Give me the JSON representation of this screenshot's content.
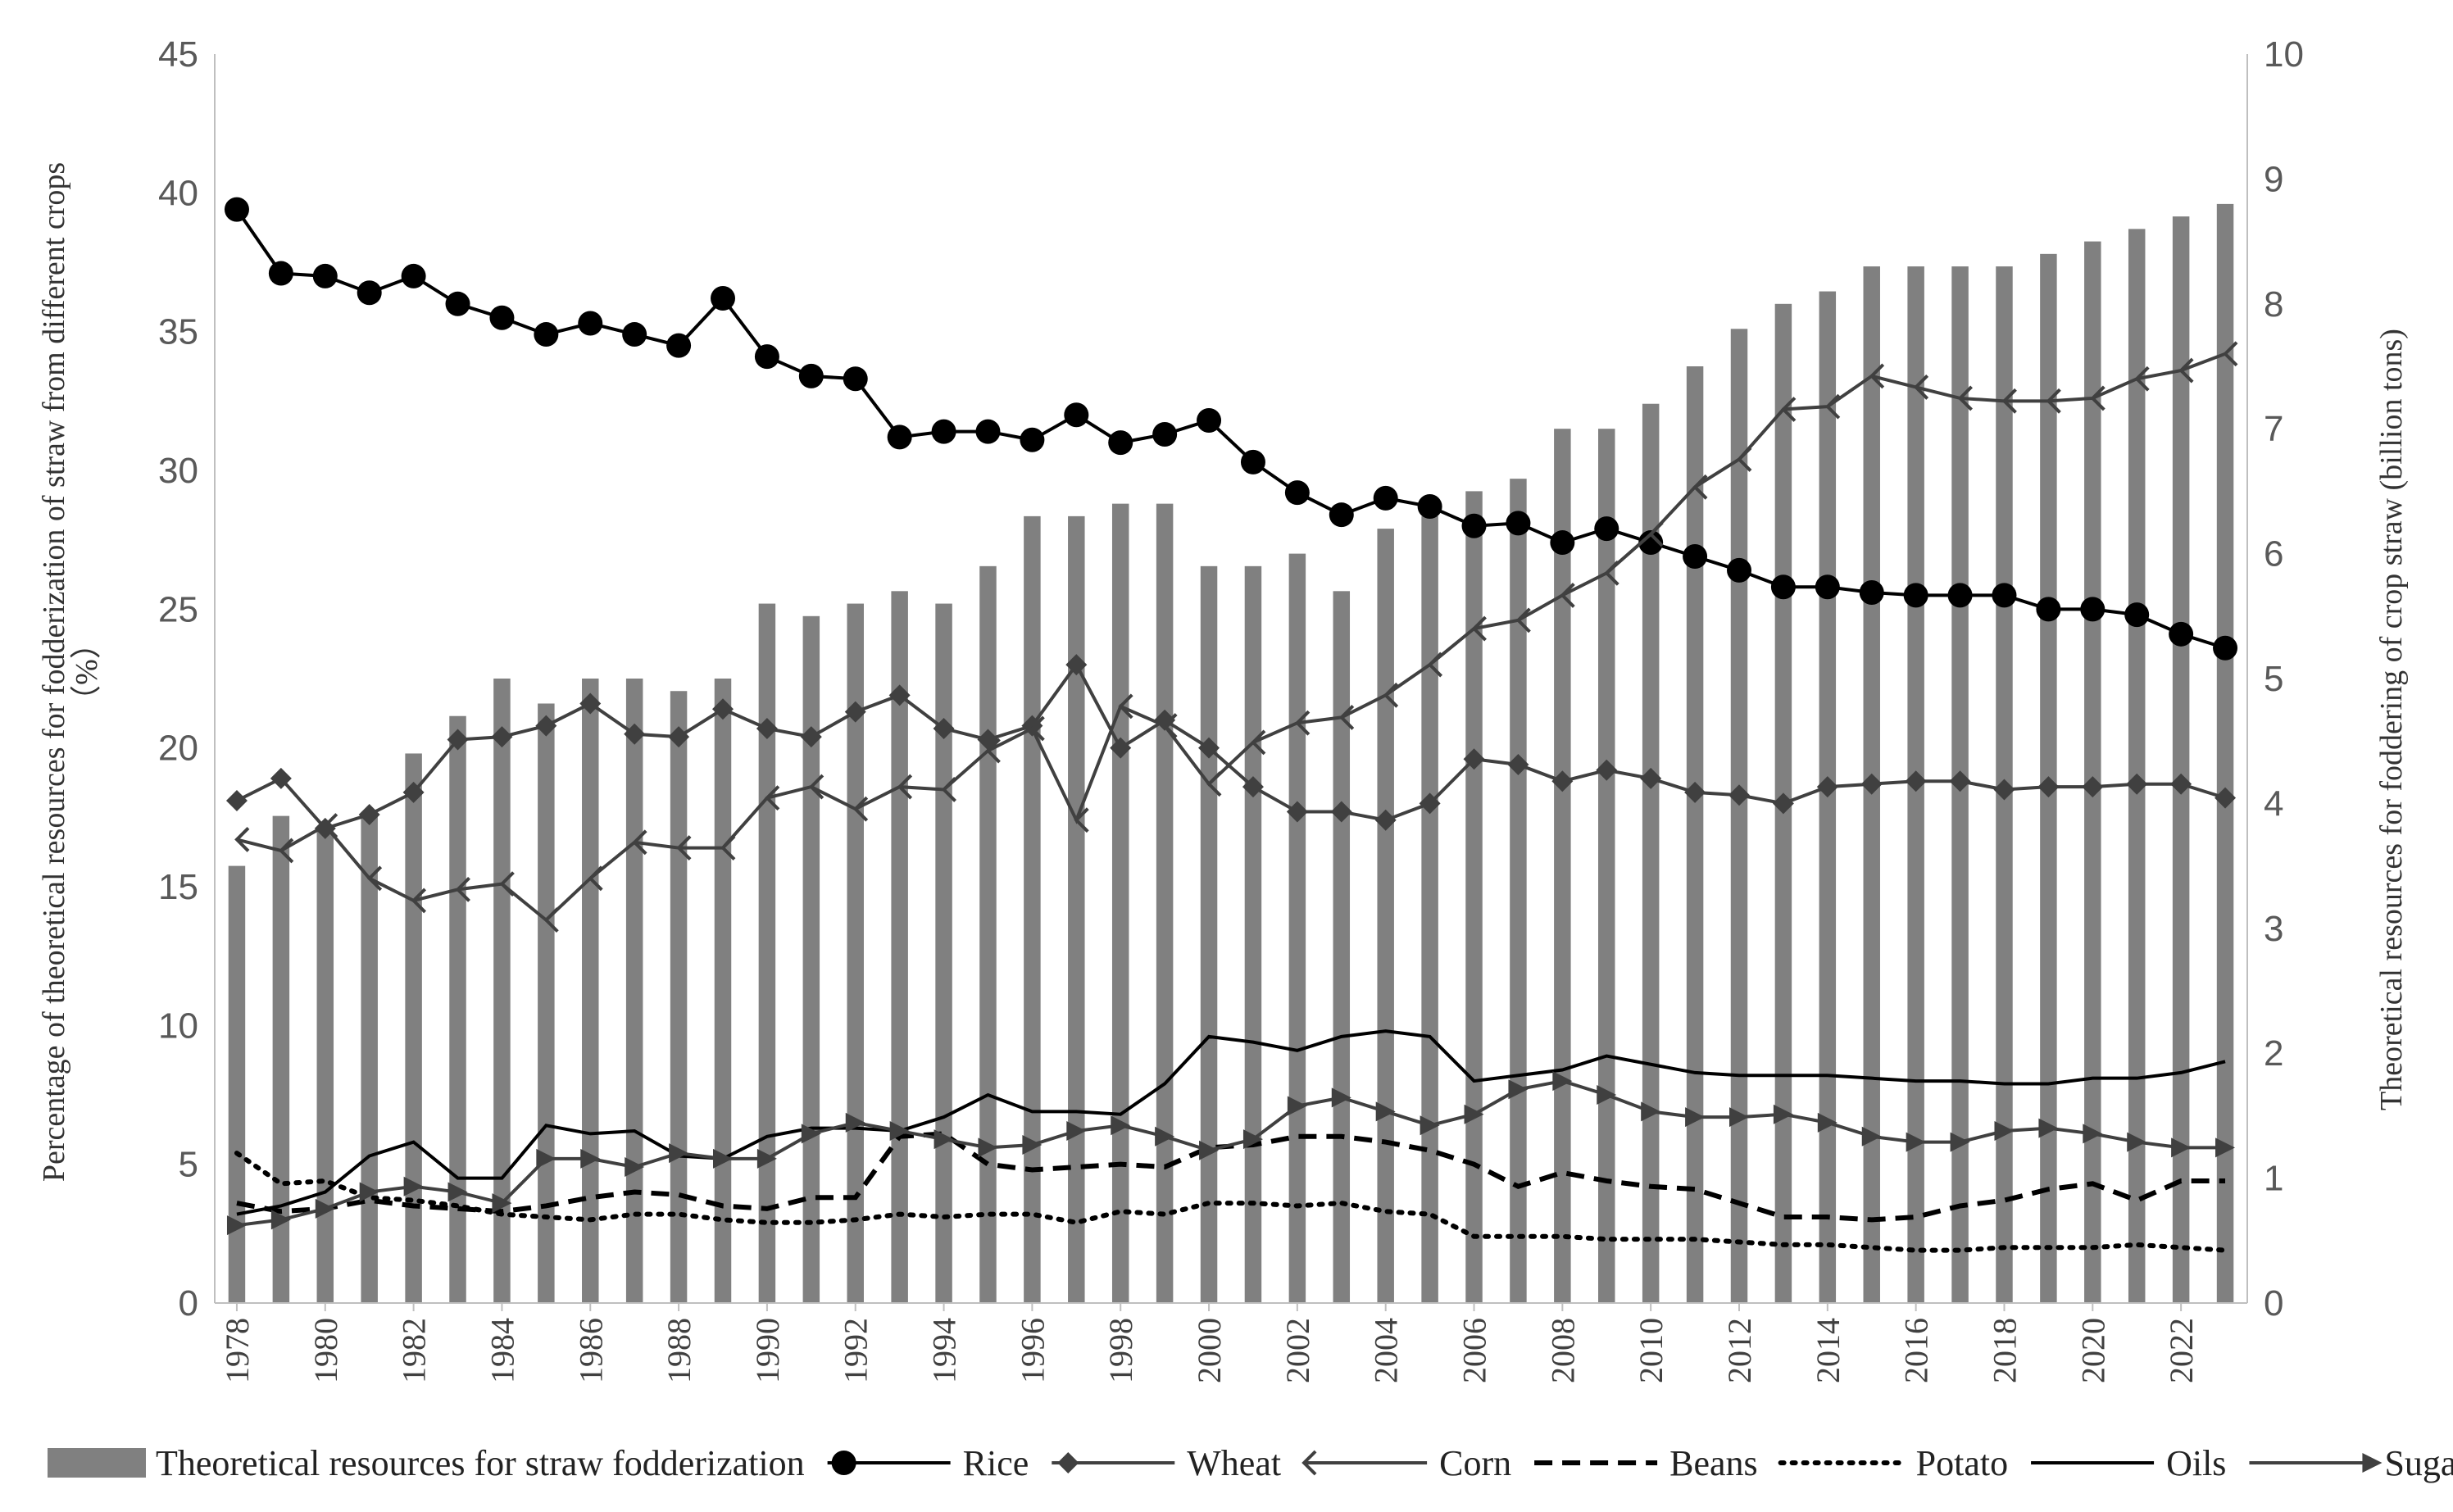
{
  "chart_data": {
    "type": "bar+line",
    "title": "",
    "xlabel": "",
    "ylabel_left": "Percentage of theoretical resources for fodderization of straw from different crops (%)",
    "ylabel_left_lines": [
      "Percentage of theoretical resources for fodderization of straw from different crops",
      "（%）"
    ],
    "ylabel_right": "Theoretical resources for foddering of crop straw (billion tons)",
    "ylim_left": [
      0,
      45
    ],
    "ylim_right": [
      0,
      10
    ],
    "yticks_left": [
      "0",
      "5",
      "10",
      "15",
      "20",
      "25",
      "30",
      "35",
      "40",
      "45"
    ],
    "yticks_right": [
      "0",
      "1",
      "2",
      "3",
      "4",
      "5",
      "6",
      "7",
      "8",
      "9",
      "10"
    ],
    "grid": false,
    "legend_position": "bottom",
    "categories": [
      "1978",
      "1979",
      "1980",
      "1981",
      "1982",
      "1983",
      "1984",
      "1985",
      "1986",
      "1987",
      "1988",
      "1989",
      "1990",
      "1991",
      "1992",
      "1993",
      "1994",
      "1995",
      "1996",
      "1997",
      "1998",
      "1999",
      "2000",
      "2001",
      "2002",
      "2003",
      "2004",
      "2005",
      "2006",
      "2007",
      "2008",
      "2009",
      "2010",
      "2011",
      "2012",
      "2013",
      "2014",
      "2015",
      "2016",
      "2017",
      "2018",
      "2019",
      "2020",
      "2021",
      "2022",
      "2023"
    ],
    "x_tick_labels": [
      "1978",
      "1980",
      "1982",
      "1984",
      "1986",
      "1988",
      "1990",
      "1992",
      "1994",
      "1996",
      "1998",
      "2000",
      "2002",
      "2004",
      "2006",
      "2008",
      "2010",
      "2012",
      "2014",
      "2016",
      "2018",
      "2020",
      "2022"
    ],
    "bar_series": {
      "name": "Theoretical resources for straw fodderization",
      "axis": "right",
      "color": "#808080",
      "values": [
        3.5,
        3.9,
        3.8,
        3.9,
        4.4,
        4.7,
        5.0,
        4.8,
        5.0,
        5.0,
        4.9,
        5.0,
        5.6,
        5.5,
        5.6,
        5.7,
        5.6,
        5.9,
        6.3,
        6.3,
        6.4,
        6.4,
        5.9,
        5.9,
        6.0,
        5.7,
        6.2,
        6.3,
        6.5,
        6.6,
        7.0,
        7.0,
        7.2,
        7.5,
        7.8,
        8.0,
        8.1,
        8.3,
        8.3,
        8.3,
        8.3,
        8.4,
        8.5,
        8.6,
        8.7,
        8.8
      ]
    },
    "series": [
      {
        "name": "Rice",
        "axis": "left",
        "marker": "circle",
        "dash": "solid",
        "values": [
          39.4,
          37.1,
          37.0,
          36.4,
          37.0,
          36.0,
          35.5,
          34.9,
          35.3,
          34.9,
          34.5,
          36.2,
          34.1,
          33.4,
          33.3,
          31.2,
          31.4,
          31.4,
          31.1,
          32.0,
          31.0,
          31.3,
          31.8,
          30.3,
          29.2,
          28.4,
          29.0,
          28.7,
          28.0,
          28.1,
          27.4,
          27.9,
          27.4,
          26.9,
          26.4,
          25.8,
          25.8,
          25.6,
          25.5,
          25.5,
          25.5,
          25.0,
          25.0,
          24.8,
          24.1,
          23.6
        ]
      },
      {
        "name": "Wheat",
        "axis": "left",
        "marker": "diamond",
        "dash": "solid",
        "values": [
          18.1,
          18.9,
          17.1,
          17.6,
          18.4,
          20.3,
          20.4,
          20.8,
          21.6,
          20.5,
          20.4,
          21.4,
          20.7,
          20.4,
          21.3,
          21.9,
          20.7,
          20.3,
          20.8,
          23.0,
          20.0,
          21.0,
          20.0,
          18.6,
          17.7,
          17.7,
          17.4,
          18.0,
          19.6,
          19.4,
          18.8,
          19.2,
          18.9,
          18.4,
          18.3,
          18.0,
          18.6,
          18.7,
          18.8,
          18.8,
          18.5,
          18.6,
          18.6,
          18.7,
          18.7,
          18.2
        ]
      },
      {
        "name": "Corn",
        "axis": "left",
        "marker": "arrow-left",
        "dash": "solid",
        "values": [
          16.7,
          16.3,
          17.2,
          15.3,
          14.5,
          14.9,
          15.1,
          13.8,
          15.3,
          16.6,
          16.4,
          16.4,
          18.2,
          18.6,
          17.8,
          18.6,
          18.5,
          19.9,
          20.7,
          17.4,
          21.5,
          20.8,
          18.7,
          20.2,
          20.9,
          21.1,
          21.9,
          23.0,
          24.3,
          24.6,
          25.5,
          26.3,
          27.7,
          29.4,
          30.4,
          32.2,
          32.3,
          33.4,
          33.0,
          32.6,
          32.5,
          32.5,
          32.6,
          33.3,
          33.6,
          34.2
        ]
      },
      {
        "name": "Beans",
        "axis": "left",
        "marker": "none",
        "dash": "dashed",
        "values": [
          3.6,
          3.3,
          3.4,
          3.7,
          3.5,
          3.4,
          3.3,
          3.5,
          3.8,
          4.0,
          3.9,
          3.5,
          3.4,
          3.8,
          3.8,
          6.0,
          6.1,
          5.0,
          4.8,
          4.9,
          5.0,
          4.9,
          5.6,
          5.7,
          6.0,
          6.0,
          5.8,
          5.5,
          5.0,
          4.2,
          4.7,
          4.4,
          4.2,
          4.1,
          3.6,
          3.1,
          3.1,
          3.0,
          3.1,
          3.5,
          3.7,
          4.1,
          4.3,
          3.7,
          4.4,
          4.4
        ]
      },
      {
        "name": "Potato",
        "axis": "left",
        "marker": "none",
        "dash": "dotted",
        "values": [
          5.4,
          4.3,
          4.4,
          3.8,
          3.7,
          3.5,
          3.2,
          3.1,
          3.0,
          3.2,
          3.2,
          3.0,
          2.9,
          2.9,
          3.0,
          3.2,
          3.1,
          3.2,
          3.2,
          2.9,
          3.3,
          3.2,
          3.6,
          3.6,
          3.5,
          3.6,
          3.3,
          3.2,
          2.4,
          2.4,
          2.4,
          2.3,
          2.3,
          2.3,
          2.2,
          2.1,
          2.1,
          2.0,
          1.9,
          1.9,
          2.0,
          2.0,
          2.0,
          2.1,
          2.0,
          1.9
        ]
      },
      {
        "name": "Oils",
        "axis": "left",
        "marker": "none",
        "dash": "solid",
        "values": [
          3.2,
          3.5,
          4.0,
          5.3,
          5.8,
          4.5,
          4.5,
          6.4,
          6.1,
          6.2,
          5.3,
          5.2,
          6.0,
          6.3,
          6.3,
          6.2,
          6.7,
          7.5,
          6.9,
          6.9,
          6.8,
          7.9,
          9.6,
          9.4,
          9.1,
          9.6,
          9.8,
          9.6,
          8.0,
          8.2,
          8.4,
          8.9,
          8.6,
          8.3,
          8.2,
          8.2,
          8.2,
          8.1,
          8.0,
          8.0,
          7.9,
          7.9,
          8.1,
          8.1,
          8.3,
          8.7
        ]
      },
      {
        "name": "Sugar",
        "axis": "left",
        "marker": "arrow-right",
        "dash": "solid",
        "values": [
          2.8,
          3.0,
          3.4,
          4.0,
          4.2,
          4.0,
          3.6,
          5.2,
          5.2,
          4.9,
          5.4,
          5.2,
          5.2,
          6.1,
          6.5,
          6.2,
          5.9,
          5.6,
          5.7,
          6.2,
          6.4,
          6.0,
          5.5,
          5.9,
          7.1,
          7.4,
          6.9,
          6.4,
          6.8,
          7.7,
          8.0,
          7.5,
          6.9,
          6.7,
          6.7,
          6.8,
          6.5,
          6.0,
          5.8,
          5.8,
          6.2,
          6.3,
          6.1,
          5.8,
          5.6,
          5.6
        ]
      }
    ],
    "legend": [
      {
        "label": "Theoretical resources for straw fodderization",
        "kind": "bar"
      },
      {
        "label": "Rice",
        "kind": "line",
        "marker": "circle",
        "dash": "solid"
      },
      {
        "label": "Wheat",
        "kind": "line",
        "marker": "diamond",
        "dash": "solid"
      },
      {
        "label": "Corn",
        "kind": "line",
        "marker": "arrow-left",
        "dash": "solid"
      },
      {
        "label": "Beans",
        "kind": "line",
        "marker": "none",
        "dash": "dashed"
      },
      {
        "label": "Potato",
        "kind": "line",
        "marker": "none",
        "dash": "dotted"
      },
      {
        "label": "Oils",
        "kind": "line",
        "marker": "none",
        "dash": "solid"
      },
      {
        "label": "Sugar",
        "kind": "line",
        "marker": "arrow-right",
        "dash": "solid"
      }
    ]
  }
}
